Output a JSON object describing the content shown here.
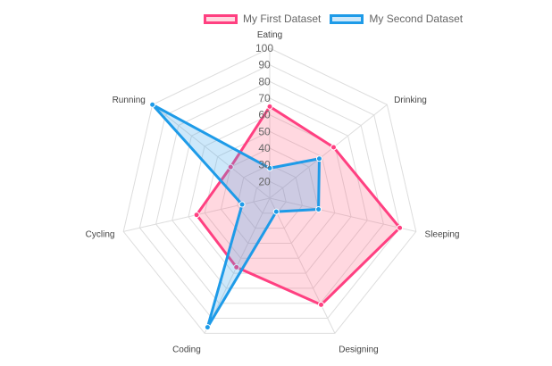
{
  "chart_data": {
    "type": "radar",
    "labels": [
      "Eating",
      "Drinking",
      "Sleeping",
      "Designing",
      "Coding",
      "Cycling",
      "Running"
    ],
    "scale": {
      "min": 10,
      "max": 100,
      "ticks": [
        "20",
        "30",
        "40",
        "50",
        "60",
        "70",
        "80",
        "90",
        "100"
      ],
      "grid": true
    },
    "legend_position": "top",
    "series": [
      {
        "name": "My First Dataset",
        "values": [
          65,
          59,
          90,
          81,
          56,
          55,
          40
        ],
        "border_color": "#ff4081",
        "fill_color": "#ff6384",
        "fill_opacity": 0.25
      },
      {
        "name": "My Second Dataset",
        "values": [
          28,
          48,
          40,
          19,
          96,
          27,
          100
        ],
        "border_color": "#1e9be8",
        "fill_color": "#36a2eb",
        "fill_opacity": 0.25
      }
    ]
  }
}
